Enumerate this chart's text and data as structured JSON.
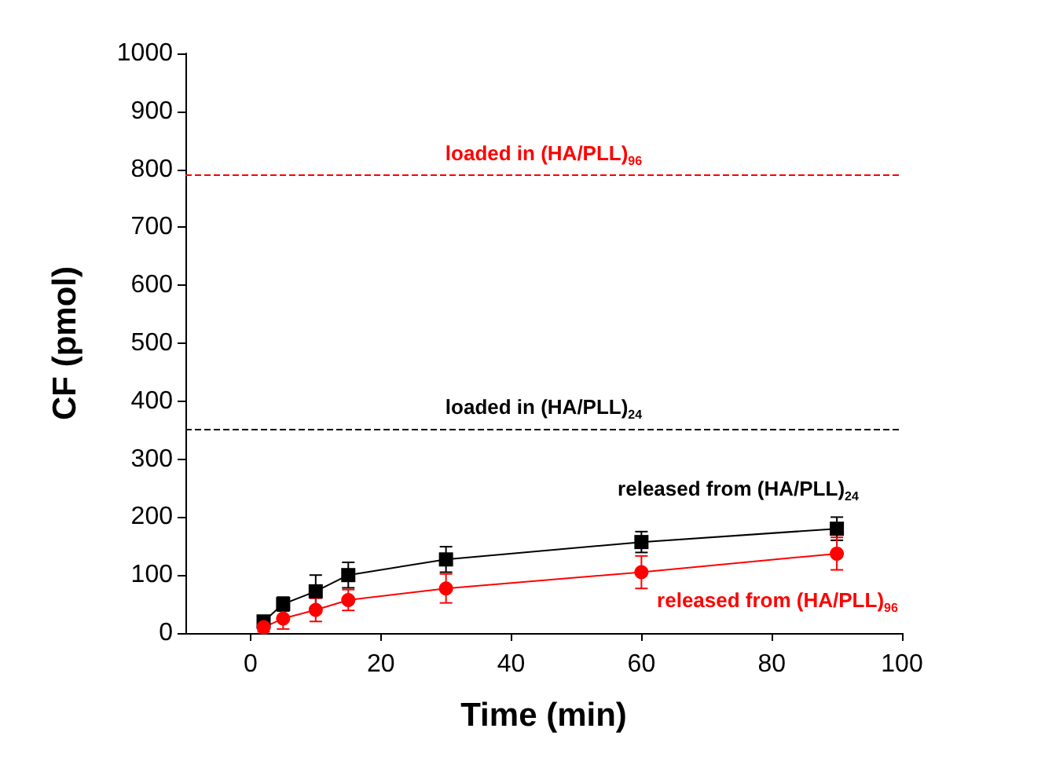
{
  "chart_data": {
    "type": "line",
    "xlabel": "Time (min)",
    "ylabel": "CF (pmol)",
    "x": [
      2,
      5,
      10,
      15,
      30,
      60,
      90
    ],
    "series": [
      {
        "name": "released from (HA/PLL)$_{24}$",
        "color": "#000000",
        "marker": "square",
        "values": [
          20,
          50,
          72,
          100,
          127,
          157,
          180
        ],
        "errors": [
          10,
          12,
          28,
          22,
          22,
          18,
          20
        ]
      },
      {
        "name": "released from (HA/PLL)$_{96}$",
        "color": "#ff0000",
        "marker": "circle",
        "values": [
          10,
          25,
          40,
          57,
          77,
          105,
          137
        ],
        "errors": [
          8,
          18,
          20,
          18,
          25,
          28,
          28
        ]
      }
    ],
    "ref_lines": [
      {
        "axis": "y",
        "value": 790,
        "label": "loaded in (HA/PLL)$_{96}$",
        "color": "#ff0000",
        "line_style": "dashed"
      },
      {
        "axis": "y",
        "value": 352,
        "label": "loaded in (HA/PLL)$_{24}$",
        "color": "#000000",
        "line_style": "dashed"
      }
    ],
    "xlim": [
      -10,
      100
    ],
    "xticks": [
      0,
      20,
      40,
      60,
      80,
      100
    ],
    "ylim": [
      0,
      1000
    ],
    "yticks": [
      0,
      100,
      200,
      300,
      400,
      500,
      600,
      700,
      800,
      900,
      1000
    ]
  }
}
